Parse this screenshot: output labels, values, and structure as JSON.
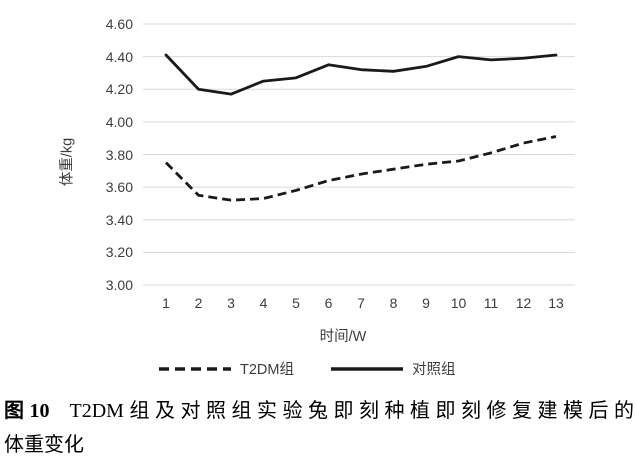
{
  "chart_data": {
    "type": "line",
    "title": "",
    "xlabel": "时间/W",
    "ylabel": "体重/kg",
    "x": [
      1,
      2,
      3,
      4,
      5,
      6,
      7,
      8,
      9,
      10,
      11,
      12,
      13
    ],
    "xticks": [
      "1",
      "2",
      "3",
      "4",
      "5",
      "6",
      "7",
      "8",
      "9",
      "10",
      "11",
      "12",
      "13"
    ],
    "yticks": [
      "3.00",
      "3.20",
      "3.40",
      "3.60",
      "3.80",
      "4.00",
      "4.20",
      "4.40",
      "4.60"
    ],
    "ylim": [
      3.0,
      4.6
    ],
    "grid": true,
    "legend_position": "bottom",
    "series": [
      {
        "name": "T2DM组",
        "style": "dashed",
        "color": "#1a1a1a",
        "values": [
          3.75,
          3.55,
          3.52,
          3.53,
          3.58,
          3.64,
          3.68,
          3.71,
          3.74,
          3.76,
          3.81,
          3.87,
          3.91
        ]
      },
      {
        "name": "对照组",
        "style": "solid",
        "color": "#1a1a1a",
        "values": [
          4.41,
          4.2,
          4.17,
          4.25,
          4.27,
          4.35,
          4.32,
          4.31,
          4.34,
          4.4,
          4.38,
          4.39,
          4.41
        ]
      }
    ]
  },
  "caption": {
    "label": "图10",
    "line1": "T2DM组及对照组实验兔即刻种植即刻修复建模后的",
    "line2": "体重变化"
  },
  "colors": {
    "line": "#1a1a1a",
    "grid": "#d9d9d9",
    "tick_text": "#3d3d3d"
  }
}
